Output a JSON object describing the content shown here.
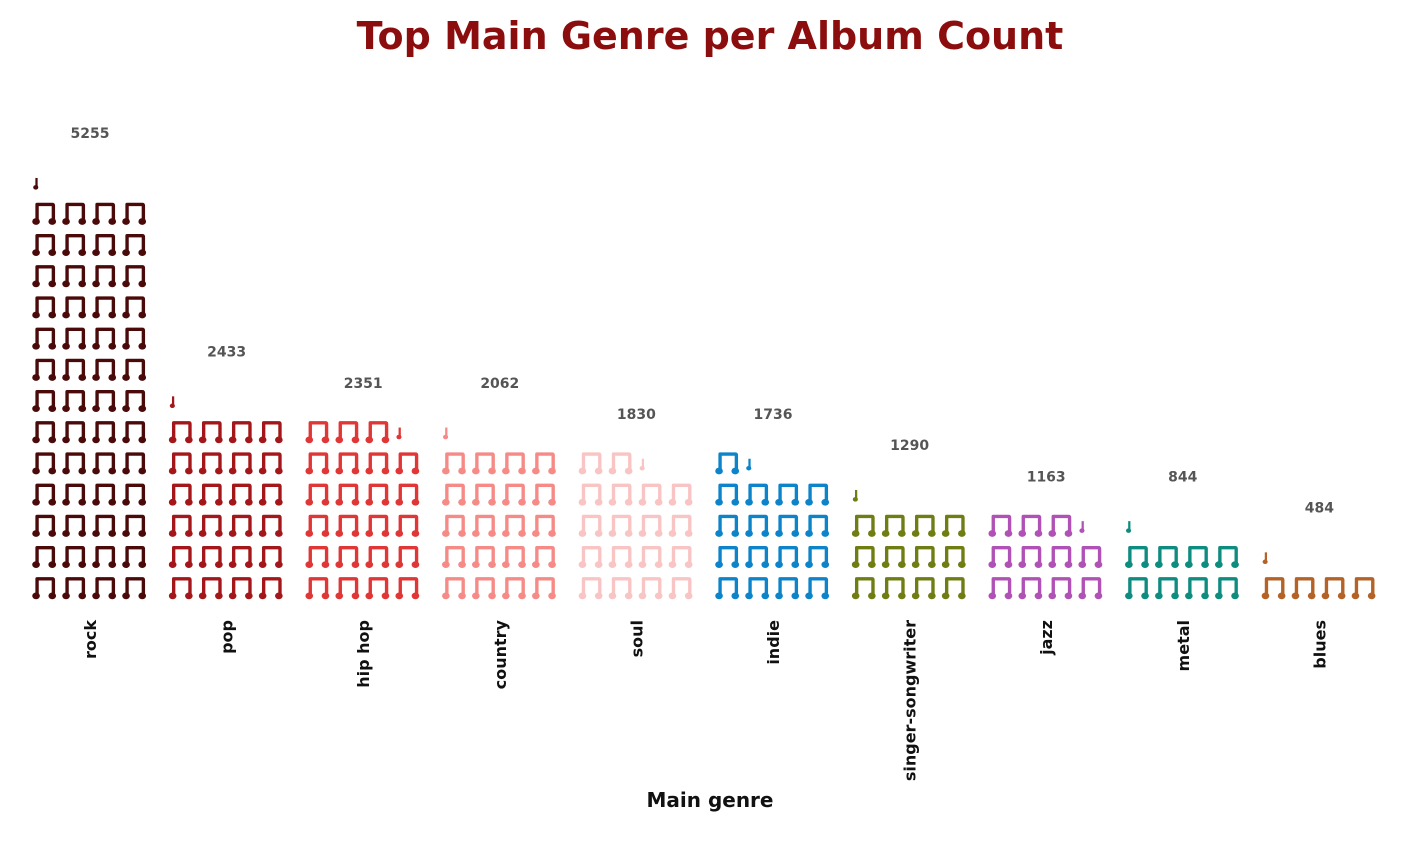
{
  "chart_data": {
    "type": "bar",
    "style": "pictogram (music note icons, stacked)",
    "title": "Top Main Genre per Album Count",
    "xlabel": "Main genre",
    "ylabel": "",
    "categories": [
      "rock",
      "pop",
      "hip hop",
      "country",
      "soul",
      "indie",
      "singer-songwriter",
      "jazz",
      "metal",
      "blues"
    ],
    "values": [
      5255,
      2433,
      2351,
      2062,
      1830,
      1736,
      1290,
      1163,
      844,
      484
    ],
    "colors": [
      "#4a0a0a",
      "#a3161a",
      "#e03636",
      "#f58a86",
      "#f9c4c4",
      "#0d84c9",
      "#6f7d12",
      "#b052b5",
      "#0f8c80",
      "#b56227"
    ],
    "icon": "music-note-icon",
    "grid": false,
    "legend": "none"
  }
}
